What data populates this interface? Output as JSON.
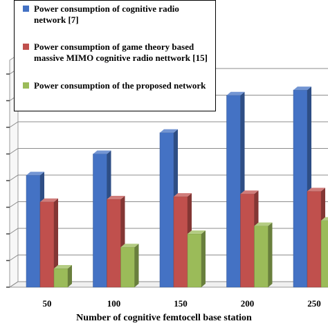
{
  "chart_data": {
    "type": "bar",
    "style": "3d-clustered-column",
    "categories": [
      "50",
      "100",
      "150",
      "200",
      "250"
    ],
    "series": [
      {
        "name": "Power consumption of cognitive radio network [7]",
        "color": "#4472C4",
        "values": [
          4.2,
          5.0,
          5.8,
          7.2,
          7.4
        ]
      },
      {
        "name": "Power consumption of game theory based massive MIMO cognitive radio nettwork [15]",
        "color": "#C0504D",
        "values": [
          3.2,
          3.3,
          3.4,
          3.5,
          3.6
        ]
      },
      {
        "name": "Power consumption of the proposed network",
        "color": "#9BBB59",
        "values": [
          0.7,
          1.5,
          2.0,
          2.3,
          2.5
        ]
      }
    ],
    "xlabel": "Number of cognitive femtocell base station",
    "ylim": [
      0,
      8
    ],
    "grid": true,
    "legend_position": "top-left"
  }
}
